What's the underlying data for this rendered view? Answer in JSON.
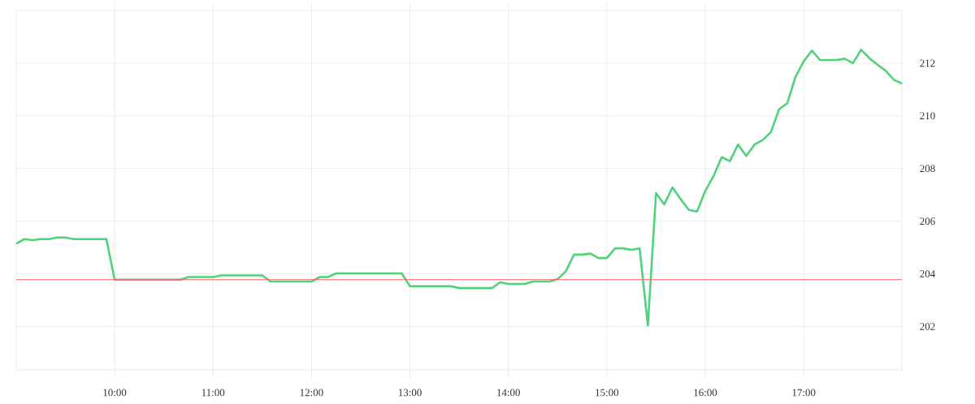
{
  "chart_data": {
    "type": "line",
    "color": "#4ed27a",
    "x": [
      9,
      9.0833,
      9.1667,
      9.25,
      9.3333,
      9.4167,
      9.5,
      9.5833,
      9.6667,
      9.75,
      9.8333,
      9.9167,
      10,
      10.0833,
      10.1667,
      10.25,
      10.3333,
      10.4167,
      10.5,
      10.5833,
      10.6667,
      10.75,
      10.8333,
      10.9167,
      11,
      11.0833,
      11.1667,
      11.25,
      11.3333,
      11.4167,
      11.5,
      11.5833,
      11.6667,
      11.75,
      11.8333,
      11.9167,
      12,
      12.0833,
      12.1667,
      12.25,
      12.3333,
      12.4167,
      12.5,
      12.5833,
      12.6667,
      12.75,
      12.8333,
      12.9167,
      13,
      13.0833,
      13.1667,
      13.25,
      13.3333,
      13.4167,
      13.5,
      13.5833,
      13.6667,
      13.75,
      13.8333,
      13.9167,
      14,
      14.0833,
      14.1667,
      14.25,
      14.3333,
      14.4167,
      14.5,
      14.5833,
      14.6667,
      14.75,
      14.8333,
      14.9167,
      15,
      15.0833,
      15.1667,
      15.25,
      15.3333,
      15.4167,
      15.5,
      15.5833,
      15.6667,
      15.75,
      15.8333,
      15.9167,
      16,
      16.0833,
      16.1667,
      16.25,
      16.3333,
      16.4167,
      16.5,
      16.5833,
      16.6667,
      16.75,
      16.8333,
      16.9167,
      17,
      17.0833,
      17.1667,
      17.25,
      17.3333,
      17.4167,
      17.5,
      17.5833,
      17.6667,
      17.75,
      17.8333,
      17.9167,
      18
    ],
    "values": [
      205.15,
      205.32,
      205.28,
      205.32,
      205.32,
      205.38,
      205.38,
      205.32,
      205.32,
      205.32,
      205.32,
      205.32,
      203.78,
      203.78,
      203.78,
      203.78,
      203.78,
      203.78,
      203.78,
      203.78,
      203.78,
      203.88,
      203.88,
      203.88,
      203.88,
      203.94,
      203.94,
      203.94,
      203.94,
      203.94,
      203.94,
      203.71,
      203.71,
      203.71,
      203.71,
      203.71,
      203.71,
      203.88,
      203.88,
      204.02,
      204.02,
      204.02,
      204.02,
      204.02,
      204.02,
      204.02,
      204.02,
      204.02,
      203.53,
      203.53,
      203.53,
      203.53,
      203.53,
      203.53,
      203.46,
      203.46,
      203.46,
      203.46,
      203.46,
      203.68,
      203.62,
      203.62,
      203.62,
      203.71,
      203.71,
      203.71,
      203.8,
      204.1,
      204.73,
      204.73,
      204.77,
      204.6,
      204.6,
      204.97,
      204.97,
      204.91,
      204.97,
      202.04,
      207.07,
      206.64,
      207.28,
      206.84,
      206.43,
      206.37,
      207.15,
      207.71,
      208.43,
      208.28,
      208.91,
      208.48,
      208.91,
      209.08,
      209.38,
      210.25,
      210.48,
      211.48,
      212.07,
      212.48,
      212.12,
      212.12,
      212.12,
      212.17,
      212.0,
      212.51,
      212.19,
      211.94,
      211.71,
      211.37,
      211.22
    ],
    "xlim": [
      9,
      18
    ],
    "ylim": [
      200.35,
      214
    ],
    "xticks": [
      {
        "value": 10,
        "label": "10:00"
      },
      {
        "value": 11,
        "label": "11:00"
      },
      {
        "value": 12,
        "label": "12:00"
      },
      {
        "value": 13,
        "label": "13:00"
      },
      {
        "value": 14,
        "label": "14:00"
      },
      {
        "value": 15,
        "label": "15:00"
      },
      {
        "value": 16,
        "label": "16:00"
      },
      {
        "value": 17,
        "label": "17:00"
      }
    ],
    "yticks": [
      202,
      204,
      206,
      208,
      210,
      212
    ],
    "grid": true,
    "ref_lines": [
      {
        "axis": "y",
        "value": 203.78,
        "color": "#ff5a5a"
      }
    ]
  }
}
